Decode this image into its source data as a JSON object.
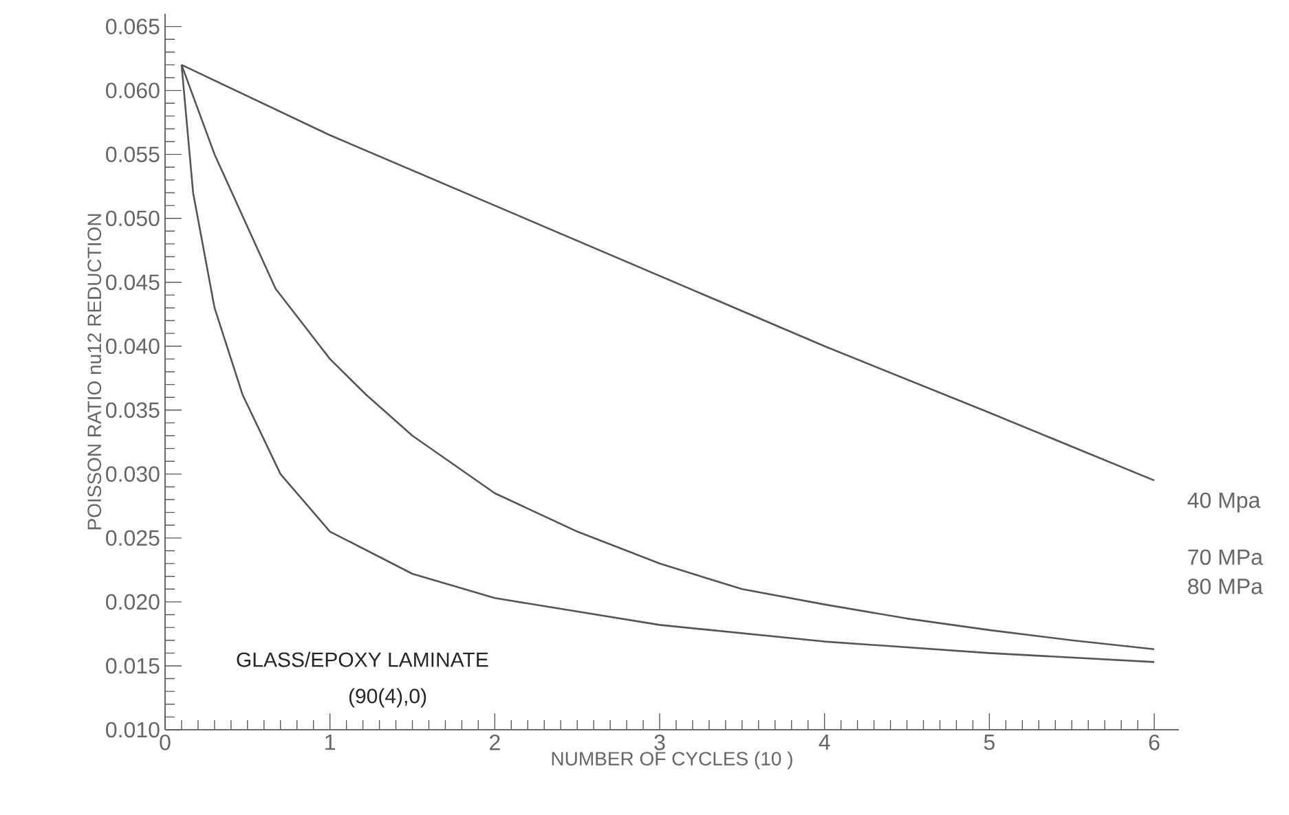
{
  "chart_data": {
    "type": "line",
    "xlabel": "NUMBER OF CYCLES (10 )",
    "ylabel": "POISSON RATIO nu12 REDUCTION",
    "annotations": [
      "GLASS/EPOXY LAMINATE",
      "(90(4),0)"
    ],
    "xlim": [
      0,
      6.15
    ],
    "ylim": [
      0.01,
      0.066
    ],
    "xticks": [
      0,
      1,
      2,
      3,
      4,
      5,
      6
    ],
    "yticks": [
      {
        "value": 0.01,
        "label": "0.010"
      },
      {
        "value": 0.015,
        "label": "0.015"
      },
      {
        "value": 0.02,
        "label": "0.020"
      },
      {
        "value": 0.025,
        "label": "0.025"
      },
      {
        "value": 0.03,
        "label": "0.030"
      },
      {
        "value": 0.035,
        "label": "0.035"
      },
      {
        "value": 0.04,
        "label": "0.040"
      },
      {
        "value": 0.045,
        "label": "0.045"
      },
      {
        "value": 0.05,
        "label": "0.050"
      },
      {
        "value": 0.055,
        "label": "0.055"
      },
      {
        "value": 0.06,
        "label": "0.060"
      },
      {
        "value": 0.065,
        "label": "0.065"
      }
    ],
    "grid": false,
    "legend": false,
    "marker": "none",
    "line_style": "solid",
    "series": [
      {
        "name": "40 Mpa",
        "color": "#555555",
        "x": [
          0.1,
          1,
          2,
          3,
          4,
          5,
          6
        ],
        "values": [
          0.062,
          0.0565,
          0.051,
          0.0455,
          0.04,
          0.0348,
          0.0295
        ]
      },
      {
        "name": "70 MPa",
        "color": "#555555",
        "x": [
          0.1,
          0.3,
          0.67,
          1.0,
          1.22,
          1.5,
          2.0,
          2.5,
          3,
          3.5,
          4,
          4.5,
          5,
          5.5,
          6
        ],
        "values": [
          0.062,
          0.055,
          0.0445,
          0.039,
          0.0362,
          0.033,
          0.0285,
          0.0255,
          0.023,
          0.021,
          0.0198,
          0.0187,
          0.0178,
          0.017,
          0.0163
        ]
      },
      {
        "name": "80 MPa",
        "color": "#555555",
        "x": [
          0.1,
          0.17,
          0.3,
          0.47,
          0.7,
          1,
          1.5,
          2,
          3,
          4,
          5,
          6
        ],
        "values": [
          0.062,
          0.052,
          0.043,
          0.0362,
          0.03,
          0.0255,
          0.0222,
          0.0203,
          0.0182,
          0.0169,
          0.016,
          0.0153
        ]
      }
    ]
  }
}
